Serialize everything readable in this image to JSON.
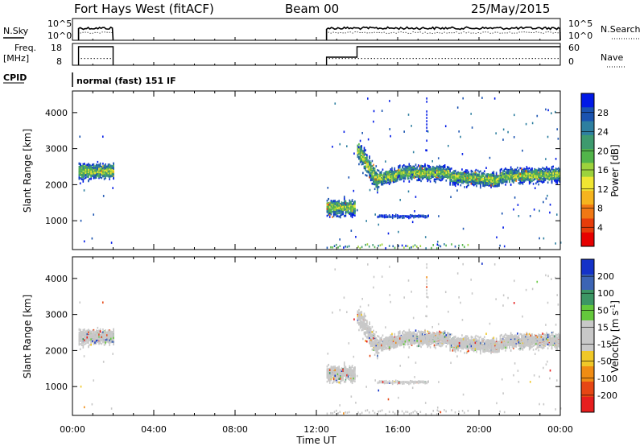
{
  "header": {
    "station": "Fort Hays West (fitACF)",
    "beam": "Beam 00",
    "date": "25/May/2015"
  },
  "side_labels": {
    "nsky": "N.Sky",
    "nsearch": "N.Search",
    "freq_line1": "Freq.",
    "freq_line2": "[MHz]",
    "nave": "Nave",
    "cpid": "CPID",
    "cpid_value": "normal (fast) 151 IF"
  },
  "noise_axis": {
    "ticks": [
      "10^5",
      "10^0"
    ],
    "right_ticks": [
      "10^5",
      "10^0"
    ]
  },
  "freq_axis": {
    "ticks": [
      "18",
      "8"
    ],
    "right_ticks": [
      "60",
      "0"
    ]
  },
  "colors": {
    "power_scale": [
      "#0019e6",
      "#1a53b0",
      "#2e7fa0",
      "#3e9a6e",
      "#52b44a",
      "#9dd23c",
      "#f0e632",
      "#f5b41e",
      "#f07814",
      "#e63c0a",
      "#e60000"
    ],
    "velocity_scale": [
      "#1432c8",
      "#3c64b4",
      "#3c9664",
      "#64c83c",
      "#c8c8c8",
      "#c8c8c8",
      "#f0c828",
      "#f08c14",
      "#e64614",
      "#e61e1e"
    ]
  },
  "chart_data": [
    {
      "type": "heatmap",
      "name": "power",
      "ylabel": "Slant Range [km]",
      "xlabel": "Time UT",
      "yticks": [
        1000,
        2000,
        3000,
        4000
      ],
      "ylim": [
        200,
        4600
      ],
      "xticks": [
        "00:00",
        "04:00",
        "08:00",
        "12:00",
        "16:00",
        "20:00",
        "00:00"
      ],
      "xlim_hours": [
        0,
        24
      ],
      "colorbar_label": "Power [dB]",
      "colorbar_ticks": [
        "28",
        "24",
        "20",
        "16",
        "12",
        "8",
        "4"
      ],
      "colorbar_range": [
        0,
        30
      ],
      "regions": [
        {
          "t0": 0.3,
          "t1": 2.0,
          "r0": 2000,
          "r1": 2800,
          "level": "mixed"
        },
        {
          "t0": 12.5,
          "t1": 13.9,
          "r0": 1050,
          "r1": 1750,
          "level": "mixed"
        },
        {
          "t0": 14.0,
          "t1": 24.0,
          "r0": 1900,
          "r1": 2700,
          "level": "mixed"
        },
        {
          "t0": 15.0,
          "t1": 17.5,
          "r0": 1100,
          "r1": 1250,
          "level": "low"
        },
        {
          "t0": 12.5,
          "t1": 19.5,
          "r0": 200,
          "r1": 400,
          "level": "low"
        }
      ]
    },
    {
      "type": "heatmap",
      "name": "velocity",
      "ylabel": "Slant Range [km]",
      "xlabel": "Time UT",
      "yticks": [
        1000,
        2000,
        3000,
        4000
      ],
      "ylim": [
        200,
        4600
      ],
      "xticks": [
        "00:00",
        "04:00",
        "08:00",
        "12:00",
        "16:00",
        "20:00",
        "00:00"
      ],
      "xlim_hours": [
        0,
        24
      ],
      "colorbar_label": "Velocity [m s^-1]",
      "colorbar_ticks": [
        "200",
        "100",
        "50",
        "15",
        "-15",
        "-50",
        "-100",
        "-200"
      ],
      "colorbar_range": [
        -250,
        250
      ]
    }
  ],
  "noise_series": {
    "sky_segments": [
      [
        0.3,
        2.0
      ],
      [
        12.5,
        24.0
      ]
    ],
    "freq_segments": [
      [
        0.3,
        2.0
      ],
      [
        12.5,
        24.0
      ]
    ]
  }
}
